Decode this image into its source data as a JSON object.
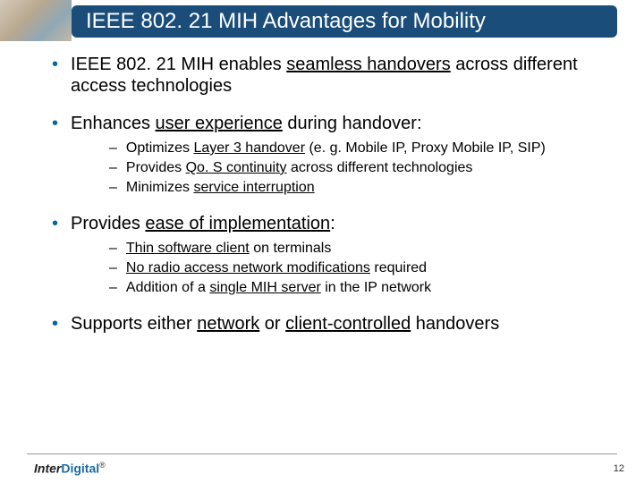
{
  "title": "IEEE 802. 21 MIH Advantages for Mobility",
  "bullets": [
    {
      "text_before": "IEEE 802. 21 MIH enables ",
      "emph": "seamless handovers",
      "text_after": " across different access technologies",
      "subs": []
    },
    {
      "text_before": "Enhances ",
      "emph": "user experience",
      "text_after": " during handover:",
      "subs": [
        {
          "before": "Optimizes ",
          "emph": "Layer 3 handover",
          "after": " (e. g. Mobile IP, Proxy Mobile IP, SIP)"
        },
        {
          "before": "Provides ",
          "emph": "Qo. S continuity",
          "after": " across different technologies"
        },
        {
          "before": "Minimizes ",
          "emph": "service interruption",
          "after": ""
        }
      ]
    },
    {
      "text_before": "Provides ",
      "emph": "ease of implementation",
      "text_after": ":",
      "subs": [
        {
          "before": "",
          "emph": "Thin software client",
          "after": " on terminals"
        },
        {
          "before": "",
          "emph": "No radio access network modifications",
          "after": " required"
        },
        {
          "before": "Addition of a ",
          "emph": "single MIH server",
          "after": " in the IP network"
        }
      ]
    },
    {
      "text_before": "Supports either ",
      "emph": "network",
      "text_mid": " or ",
      "emph2": "client-controlled",
      "text_after": " handovers",
      "subs": []
    }
  ],
  "logo": {
    "part1": "Inter",
    "part2": "Digital",
    "reg": "®"
  },
  "page_number": "12",
  "colors": {
    "title_bg": "#1a4d7a",
    "bullet_dot": "#0066a4",
    "logo_digital": "#1a6aa8"
  }
}
